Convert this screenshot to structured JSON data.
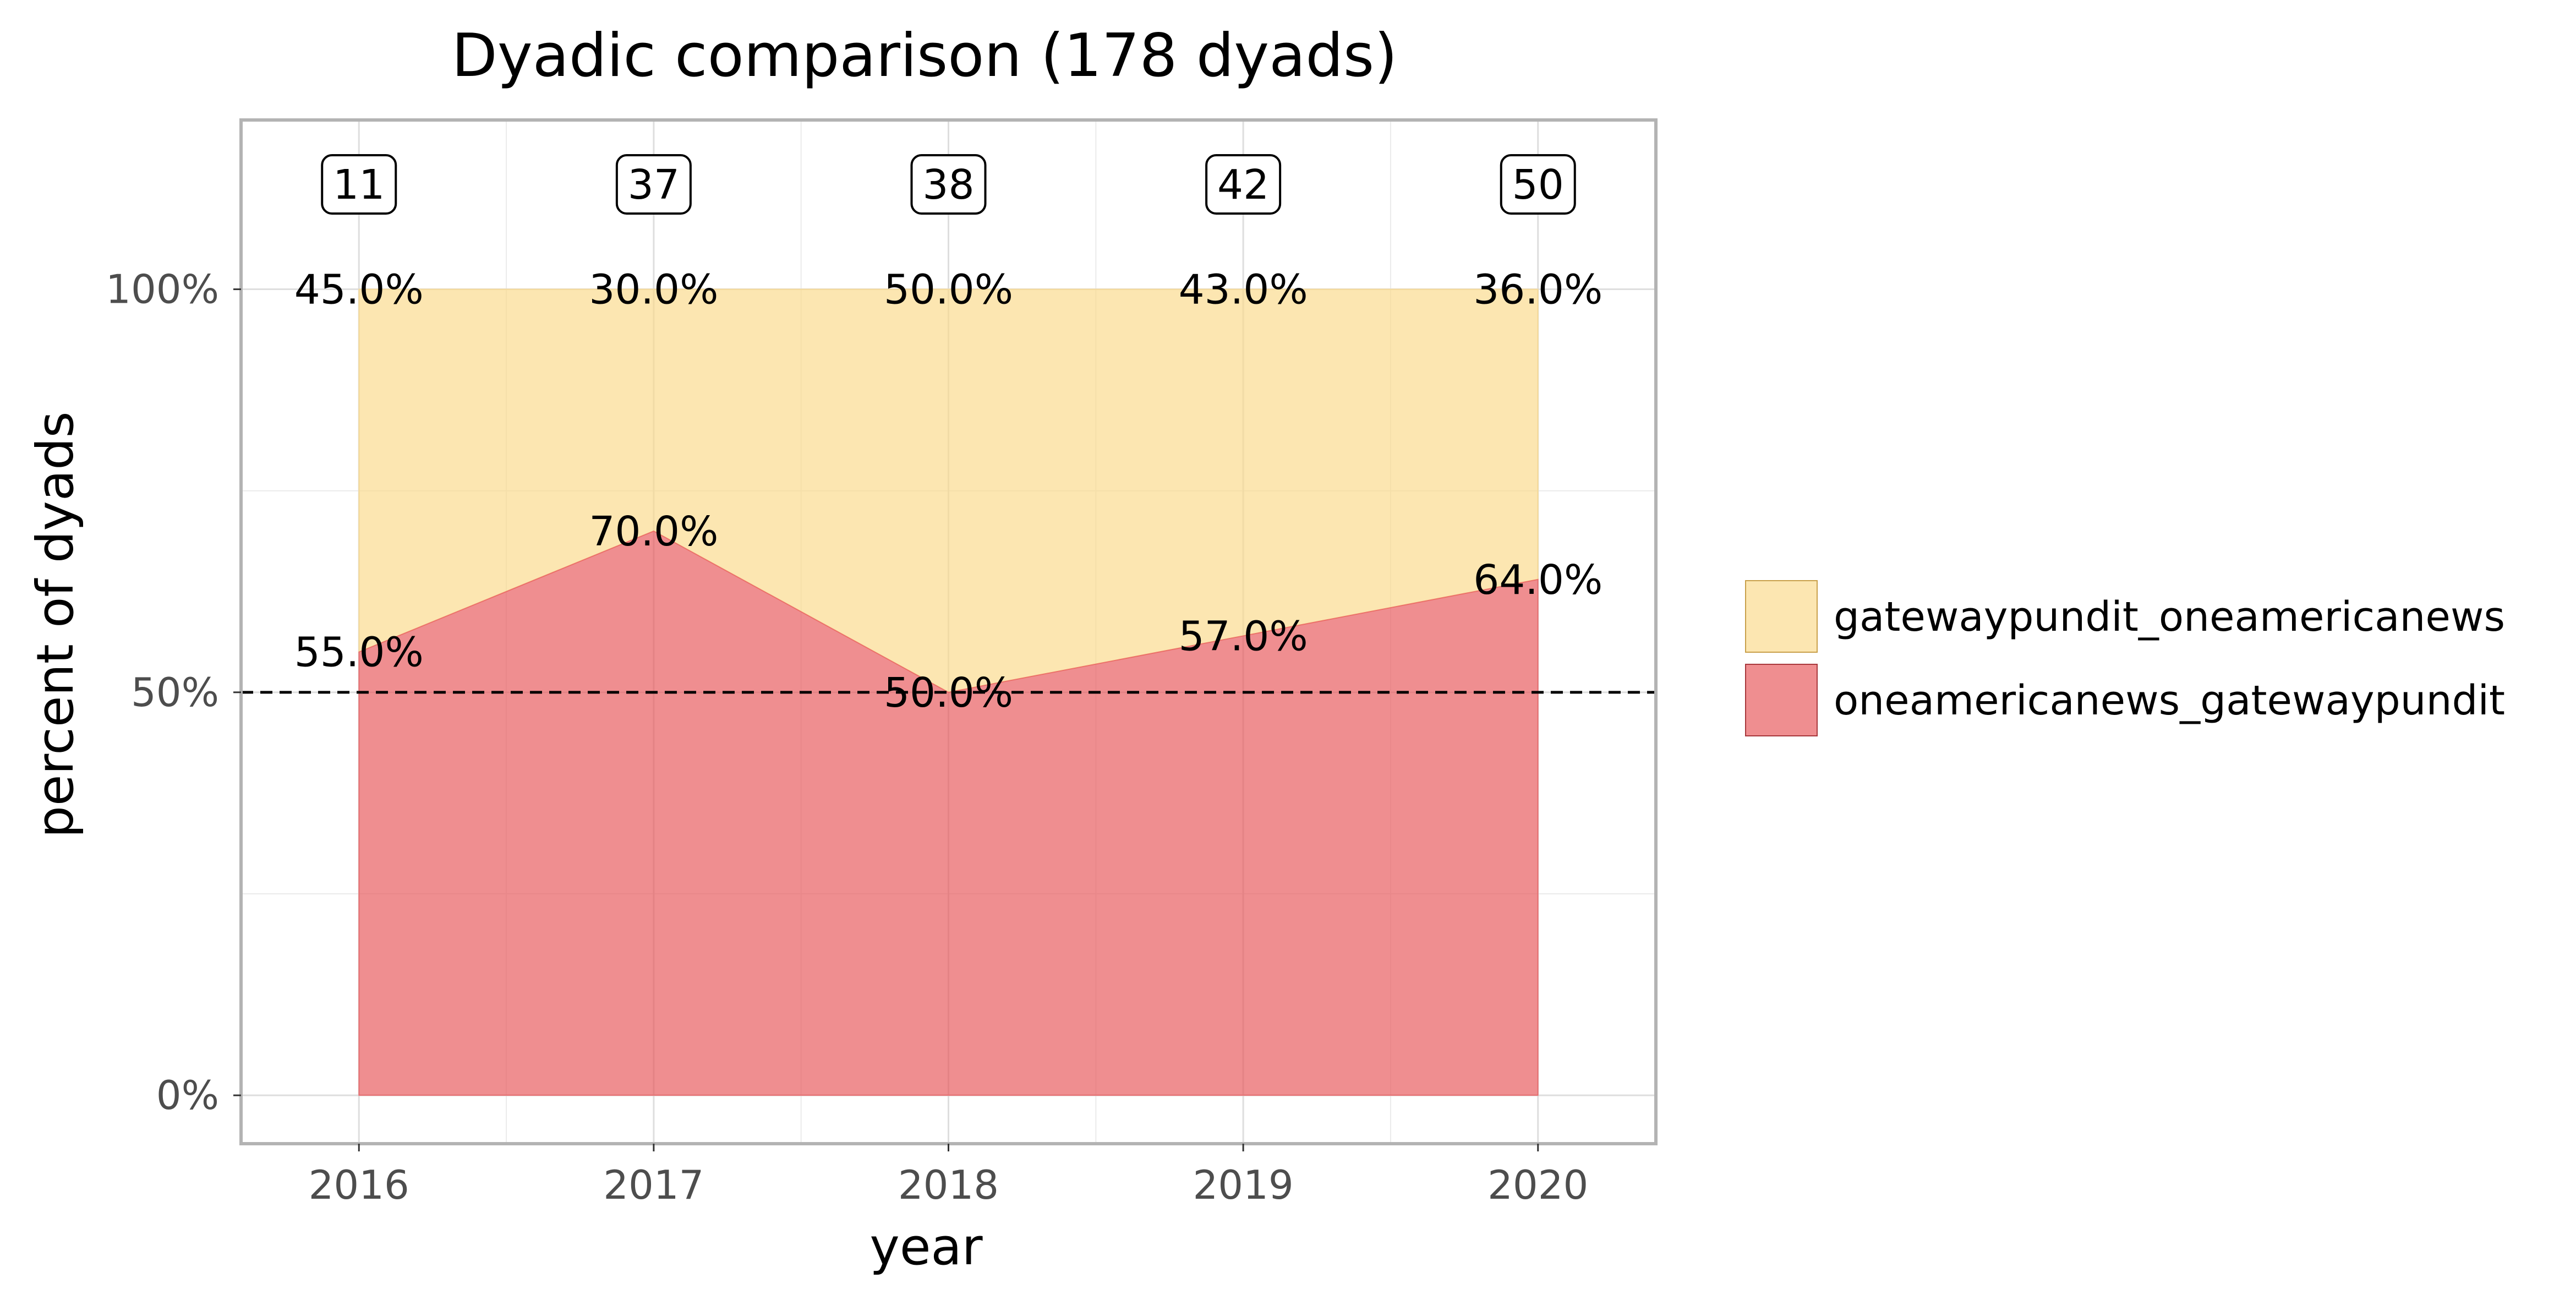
{
  "chart_data": {
    "type": "area",
    "stacked": true,
    "normalized": true,
    "title": "Dyadic comparison (178 dyads)",
    "xlabel": "year",
    "ylabel": "percent of dyads",
    "x": [
      2016,
      2017,
      2018,
      2019,
      2020
    ],
    "x_tick_labels": [
      "2016",
      "2017",
      "2018",
      "2019",
      "2020"
    ],
    "y_ticks": [
      0,
      50,
      100
    ],
    "y_tick_labels": [
      "0%",
      "50%",
      "100%"
    ],
    "ylim": [
      -6,
      121
    ],
    "xlim": [
      2015.6,
      2020.4
    ],
    "reference_line": {
      "y": 50,
      "style": "dashed"
    },
    "grid": true,
    "legend_position": "right",
    "counts": [
      11,
      37,
      38,
      42,
      50
    ],
    "count_labels": [
      "11",
      "37",
      "38",
      "42",
      "50"
    ],
    "series": [
      {
        "name": "oneamericanews_gatewaypundit",
        "color": "#E8585C",
        "values": [
          55.0,
          70.0,
          50.0,
          57.0,
          64.0
        ],
        "labels": [
          "55.0%",
          "70.0%",
          "50.0%",
          "57.0%",
          "64.0%"
        ]
      },
      {
        "name": "gatewaypundit_oneamericanews",
        "color": "#FBD887",
        "values": [
          45.0,
          30.0,
          50.0,
          43.0,
          36.0
        ],
        "labels": [
          "45.0%",
          "30.0%",
          "50.0%",
          "43.0%",
          "36.0%"
        ]
      }
    ]
  },
  "legend": {
    "items": [
      {
        "label": "gatewaypundit_oneamericanews",
        "color": "#FBD887"
      },
      {
        "label": "oneamericanews_gatewaypundit",
        "color": "#E8585C"
      }
    ]
  }
}
